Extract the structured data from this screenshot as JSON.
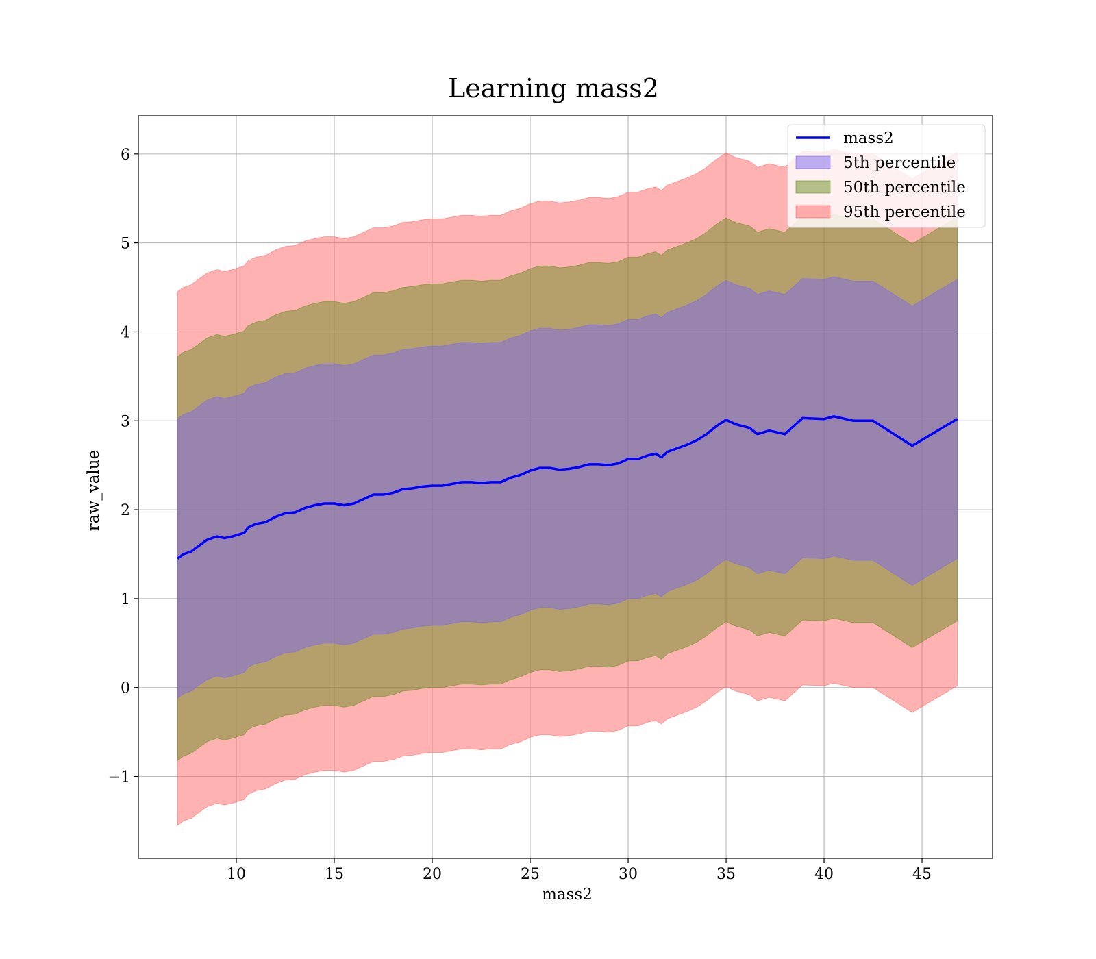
{
  "chart_data": {
    "type": "line",
    "title": "Learning mass2",
    "xlabel": "mass2",
    "ylabel": "raw_value",
    "xlim": [
      5.0,
      48.6
    ],
    "ylim": [
      -1.92,
      6.43
    ],
    "xticks": [
      10,
      15,
      20,
      25,
      30,
      35,
      40,
      45
    ],
    "yticks": [
      -1,
      0,
      1,
      2,
      3,
      4,
      5,
      6
    ],
    "ytick_labels": [
      "−1",
      "0",
      "1",
      "2",
      "3",
      "4",
      "5",
      "6"
    ],
    "grid": true,
    "legend_position": "top-right",
    "x": [
      7.0,
      7.3,
      7.7,
      8.0,
      8.5,
      9.0,
      9.4,
      9.8,
      10.4,
      10.6,
      11.0,
      11.5,
      12.0,
      12.5,
      13.0,
      13.5,
      14.0,
      14.5,
      15.0,
      15.5,
      16.0,
      16.5,
      17.0,
      17.5,
      18.0,
      18.5,
      19.0,
      19.5,
      20.0,
      20.5,
      21.0,
      21.5,
      22.0,
      22.5,
      23.0,
      23.5,
      24.0,
      24.5,
      25.0,
      25.5,
      26.0,
      26.5,
      27.0,
      27.5,
      28.0,
      28.5,
      29.0,
      29.5,
      30.0,
      30.5,
      31.0,
      31.4,
      31.7,
      32.0,
      32.5,
      33.0,
      33.5,
      34.0,
      34.5,
      35.0,
      35.5,
      36.2,
      36.6,
      37.2,
      38.0,
      38.9,
      40.0,
      40.5,
      41.5,
      42.5,
      44.5,
      46.8
    ],
    "series": [
      {
        "name": "mass2",
        "color": "#0000ff",
        "values": [
          1.45,
          1.5,
          1.53,
          1.58,
          1.66,
          1.7,
          1.68,
          1.7,
          1.74,
          1.8,
          1.84,
          1.86,
          1.92,
          1.96,
          1.97,
          2.02,
          2.05,
          2.07,
          2.07,
          2.05,
          2.07,
          2.12,
          2.17,
          2.17,
          2.19,
          2.23,
          2.24,
          2.26,
          2.27,
          2.27,
          2.29,
          2.31,
          2.31,
          2.3,
          2.31,
          2.31,
          2.36,
          2.39,
          2.44,
          2.47,
          2.47,
          2.45,
          2.46,
          2.48,
          2.51,
          2.51,
          2.5,
          2.52,
          2.57,
          2.57,
          2.61,
          2.63,
          2.59,
          2.65,
          2.69,
          2.73,
          2.78,
          2.85,
          2.94,
          3.01,
          2.96,
          2.92,
          2.85,
          2.89,
          2.85,
          3.03,
          3.02,
          3.05,
          3.0,
          3.0,
          2.72,
          3.02
        ]
      },
      {
        "name": "5th percentile",
        "color": "#7b68ee",
        "half_width": 1.57
      },
      {
        "name": "50th percentile",
        "color": "#6b8e23",
        "half_width": 2.27
      },
      {
        "name": "95th percentile",
        "color": "#ff6666",
        "half_width": 3.0
      }
    ]
  }
}
